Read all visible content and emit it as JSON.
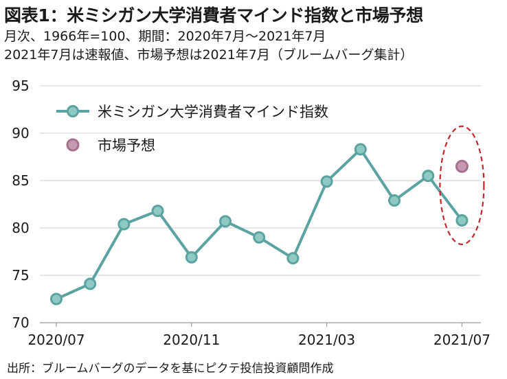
{
  "header": {
    "title": "図表1：米ミシガン大学消費者マインド指数と市場予想",
    "subtitle_1": "月次、1966年=100、期間：2020年7月～2021年7月",
    "subtitle_2": "2021年7月は速報値、市場予想は2021年7月（ブルームバーグ集計）"
  },
  "footer": {
    "source": "出所：ブルームバーグのデータを基にピクテ投信投資顧問作成"
  },
  "chart_data": {
    "type": "line",
    "x": [
      "2020/07",
      "2020/08",
      "2020/09",
      "2020/10",
      "2020/11",
      "2020/12",
      "2021/01",
      "2021/02",
      "2021/03",
      "2021/04",
      "2021/05",
      "2021/06",
      "2021/07"
    ],
    "x_tick_labels": [
      "2020/07",
      "2020/11",
      "2021/03",
      "2021/07"
    ],
    "y_ticks": [
      70,
      75,
      80,
      85,
      90,
      95
    ],
    "ylim": [
      70,
      95
    ],
    "grid": "horizontal",
    "legend_position": "top-left",
    "series": [
      {
        "name": "米ミシガン大学消費者マインド指数",
        "type": "line",
        "color": "#5aa3a0",
        "values": [
          72.5,
          74.1,
          80.4,
          81.8,
          76.9,
          80.7,
          79.0,
          76.8,
          84.9,
          88.3,
          82.9,
          85.5,
          80.8
        ]
      },
      {
        "name": "市場予想",
        "type": "scatter",
        "color": "#a8708c",
        "points": [
          {
            "x": "2021/07",
            "y": 86.5
          }
        ]
      }
    ],
    "annotation": {
      "type": "dashed-ellipse",
      "target_x": "2021/07",
      "color": "#c0282d"
    }
  }
}
